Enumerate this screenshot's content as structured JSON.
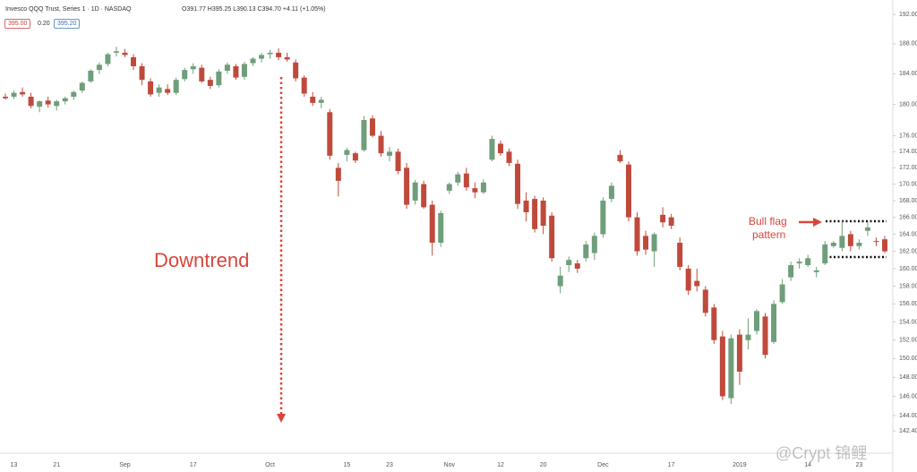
{
  "chart_data": {
    "type": "candlestick",
    "header_title": "Invesco QQQ Trust, Series 1 · 1D · NASDAQ",
    "header_ohlc": "O391.77 H395.25 L390.13 C394.70 +4.11 (+1.05%)",
    "badges": [
      "395.00",
      "0.20",
      "395.20"
    ],
    "annotations": [
      "Downtrend",
      "Bull flag",
      "pattern"
    ],
    "watermark": "@Crypt 锦鲤",
    "up_color": "#6f9e7a",
    "down_color": "#bf4a3c",
    "log_scale": true,
    "grid": false,
    "categories": [
      null,
      "13",
      null,
      null,
      null,
      null,
      "21",
      null,
      null,
      null,
      null,
      null,
      null,
      null,
      "Sep",
      null,
      null,
      null,
      null,
      null,
      null,
      null,
      "17",
      null,
      null,
      null,
      null,
      null,
      null,
      null,
      null,
      "Oct",
      null,
      null,
      null,
      null,
      null,
      null,
      null,
      null,
      "15",
      null,
      null,
      null,
      null,
      "23",
      null,
      null,
      null,
      null,
      null,
      null,
      "Nov",
      null,
      null,
      null,
      null,
      null,
      "12",
      null,
      null,
      null,
      null,
      "20",
      null,
      null,
      null,
      null,
      null,
      null,
      "Dec",
      null,
      null,
      null,
      null,
      null,
      null,
      null,
      "17",
      null,
      null,
      null,
      null,
      null,
      null,
      null,
      "2019",
      null,
      null,
      null,
      null,
      null,
      null,
      null,
      "14",
      null,
      null,
      null,
      null,
      null,
      "23",
      null,
      null,
      null
    ],
    "open": [
      181.0,
      181.0,
      181.6,
      181.0,
      179.7,
      180.5,
      179.8,
      180.4,
      181.0,
      181.8,
      183.0,
      184.5,
      185.3,
      186.8,
      186.8,
      186.2,
      185.0,
      183.0,
      181.5,
      182.0,
      181.5,
      183.3,
      184.6,
      184.8,
      183.2,
      182.5,
      184.4,
      185.0,
      183.6,
      185.4,
      186.0,
      186.6,
      186.8,
      186.2,
      185.5,
      183.5,
      181.0,
      180.2,
      179.0,
      172.0,
      173.6,
      173.8,
      174.2,
      178.2,
      176.0,
      173.5,
      174.0,
      172.0,
      168.0,
      170.0,
      167.5,
      163.0,
      169.2,
      170.2,
      171.3,
      169.5,
      169.0,
      173.0,
      175.0,
      174.0,
      172.5,
      168.0,
      168.2,
      168.0,
      166.2,
      158.0,
      160.4,
      160.6,
      161.2,
      161.8,
      164.0,
      168.2,
      173.6,
      172.4,
      166.0,
      163.8,
      162.0,
      166.3,
      166.0,
      163.0,
      160.0,
      158.6,
      157.6,
      155.6,
      152.4,
      145.8,
      152.6,
      152.0,
      153.0,
      154.6,
      151.8,
      156.2,
      159.0,
      160.6,
      160.4,
      159.6,
      160.6,
      162.6,
      162.4,
      164.0,
      162.6,
      164.4,
      163.2,
      163.4
    ],
    "high": [
      181.4,
      181.8,
      182.2,
      181.5,
      180.5,
      181.0,
      180.6,
      181.0,
      181.8,
      183.0,
      184.6,
      185.5,
      186.8,
      187.6,
      187.3,
      186.6,
      185.4,
      183.4,
      182.6,
      182.6,
      183.5,
      184.8,
      185.4,
      185.2,
      183.6,
      184.6,
      185.5,
      185.3,
      185.6,
      186.2,
      186.8,
      187.2,
      187.4,
      186.8,
      185.9,
      183.8,
      181.6,
      181.0,
      179.4,
      172.6,
      174.5,
      174.0,
      178.5,
      178.6,
      176.6,
      174.6,
      174.4,
      172.6,
      170.5,
      170.4,
      168.0,
      166.8,
      170.2,
      171.5,
      172.0,
      170.2,
      170.6,
      176.0,
      175.4,
      174.4,
      173.0,
      169.0,
      168.6,
      168.4,
      166.6,
      160.2,
      161.4,
      161.0,
      163.2,
      164.2,
      168.4,
      170.2,
      174.2,
      172.8,
      166.6,
      164.4,
      164.2,
      167.2,
      166.4,
      163.6,
      160.4,
      160.0,
      158.0,
      156.0,
      153.0,
      152.6,
      153.2,
      154.4,
      155.4,
      155.0,
      156.4,
      158.8,
      160.8,
      161.2,
      161.6,
      160.2,
      163.2,
      163.2,
      165.6,
      164.4,
      163.4,
      165.4,
      163.6,
      163.8
    ],
    "low": [
      180.6,
      180.7,
      181.0,
      179.5,
      179.0,
      179.6,
      179.2,
      180.0,
      180.6,
      181.5,
      182.8,
      184.0,
      185.0,
      186.3,
      186.2,
      184.5,
      182.5,
      181.0,
      181.0,
      181.2,
      181.2,
      183.0,
      184.0,
      182.8,
      182.0,
      182.2,
      184.0,
      183.2,
      183.2,
      185.0,
      185.5,
      186.0,
      185.8,
      185.6,
      183.0,
      181.0,
      179.8,
      179.5,
      173.0,
      168.5,
      172.8,
      172.6,
      174.0,
      175.8,
      173.4,
      172.8,
      171.2,
      167.0,
      167.5,
      167.0,
      161.5,
      162.5,
      168.8,
      169.8,
      169.2,
      168.3,
      168.8,
      172.8,
      173.5,
      172.2,
      167.0,
      165.5,
      164.2,
      164.0,
      160.8,
      157.2,
      159.6,
      159.5,
      160.8,
      161.0,
      163.6,
      167.8,
      172.6,
      165.5,
      161.5,
      161.6,
      160.2,
      164.8,
      164.6,
      159.8,
      157.0,
      157.4,
      154.6,
      151.6,
      145.6,
      145.2,
      147.2,
      151.0,
      152.6,
      150.0,
      151.6,
      156.0,
      158.6,
      160.0,
      160.2,
      159.0,
      160.4,
      162.4,
      162.0,
      162.0,
      162.2,
      163.8,
      162.6,
      161.8
    ],
    "close": [
      180.8,
      181.5,
      181.3,
      179.8,
      180.4,
      180.0,
      180.4,
      180.8,
      181.6,
      182.8,
      184.4,
      185.2,
      186.6,
      187.0,
      186.5,
      185.0,
      183.2,
      181.3,
      182.2,
      181.5,
      183.2,
      184.5,
      185.0,
      183.0,
      182.4,
      184.3,
      185.2,
      183.5,
      185.3,
      186.0,
      186.5,
      186.8,
      186.2,
      185.9,
      183.4,
      181.4,
      180.2,
      180.6,
      173.5,
      170.4,
      174.2,
      172.9,
      178.0,
      176.0,
      173.8,
      174.0,
      171.6,
      167.5,
      170.2,
      167.2,
      163.0,
      166.5,
      170.0,
      171.2,
      169.6,
      169.0,
      170.2,
      175.6,
      173.8,
      172.6,
      167.6,
      166.6,
      164.6,
      165.0,
      161.2,
      159.2,
      161.0,
      160.0,
      162.8,
      163.8,
      168.0,
      169.8,
      172.8,
      166.0,
      162.0,
      162.2,
      164.0,
      165.4,
      165.0,
      160.2,
      157.5,
      158.0,
      155.0,
      152.0,
      146.0,
      152.2,
      148.6,
      152.6,
      155.2,
      150.4,
      156.0,
      158.2,
      160.4,
      160.8,
      161.2,
      159.8,
      162.8,
      163.0,
      163.8,
      162.6,
      163.0,
      164.8,
      163.1,
      162.0
    ],
    "ylim": [
      140.7,
      194
    ],
    "yticks": [
      {
        "value": 192,
        "label": "192.00"
      },
      {
        "value": 188,
        "label": "188.00"
      },
      {
        "value": 184,
        "label": "184.00"
      },
      {
        "value": 180,
        "label": "180.00"
      },
      {
        "value": 176,
        "label": "176.00"
      },
      {
        "value": 174,
        "label": "174.00"
      },
      {
        "value": 172,
        "label": "172.00"
      },
      {
        "value": 170,
        "label": "170.00"
      },
      {
        "value": 168,
        "label": "168.00"
      },
      {
        "value": 166,
        "label": "166.00"
      },
      {
        "value": 164,
        "label": "164.00"
      },
      {
        "value": 162,
        "label": "162.00"
      },
      {
        "value": 160,
        "label": "160.00"
      },
      {
        "value": 158,
        "label": "158.00"
      },
      {
        "value": 156,
        "label": "156.00"
      },
      {
        "value": 154,
        "label": "154.00"
      },
      {
        "value": 152,
        "label": "152.00"
      },
      {
        "value": 150,
        "label": "150.00"
      },
      {
        "value": 148,
        "label": "148.00"
      },
      {
        "value": 146,
        "label": "146.00"
      },
      {
        "value": 144,
        "label": "144.00"
      },
      {
        "value": 142.4,
        "label": "142.40"
      }
    ]
  }
}
